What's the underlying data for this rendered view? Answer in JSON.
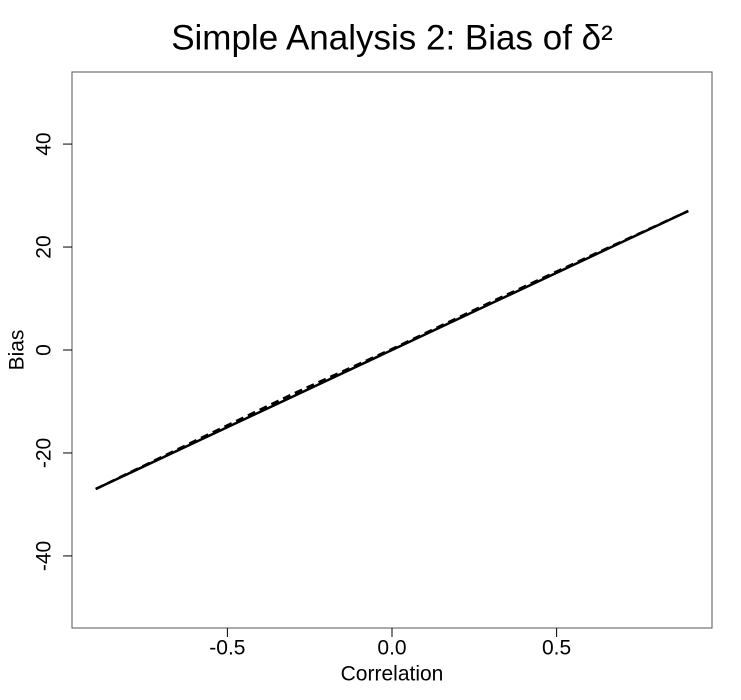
{
  "chart_data": {
    "type": "line",
    "title": "Simple Analysis 2: Bias of δ²",
    "x_label": "Correlation",
    "y_label": "Bias",
    "x": [
      -0.9,
      -0.6,
      -0.3,
      0,
      0.3,
      0.6,
      0.9
    ],
    "series": [
      {
        "color": "#000000",
        "dash": "solid",
        "values": [
          -27,
          -18,
          -9,
          0,
          9,
          18,
          27
        ]
      },
      {
        "color": "#000000",
        "dash": "dashed",
        "values": [
          -27,
          -17.7,
          -8.5,
          0.2,
          9.3,
          18.2,
          27
        ]
      }
    ],
    "xlim": [
      -0.972,
      0.972
    ],
    "ylim": [
      -54,
      54
    ],
    "xticks": [
      -0.5,
      {
        "value": 0,
        "label": "0.0"
      },
      0.5
    ],
    "yticks": [
      -40,
      -20,
      0,
      20,
      40
    ],
    "grid": false
  }
}
